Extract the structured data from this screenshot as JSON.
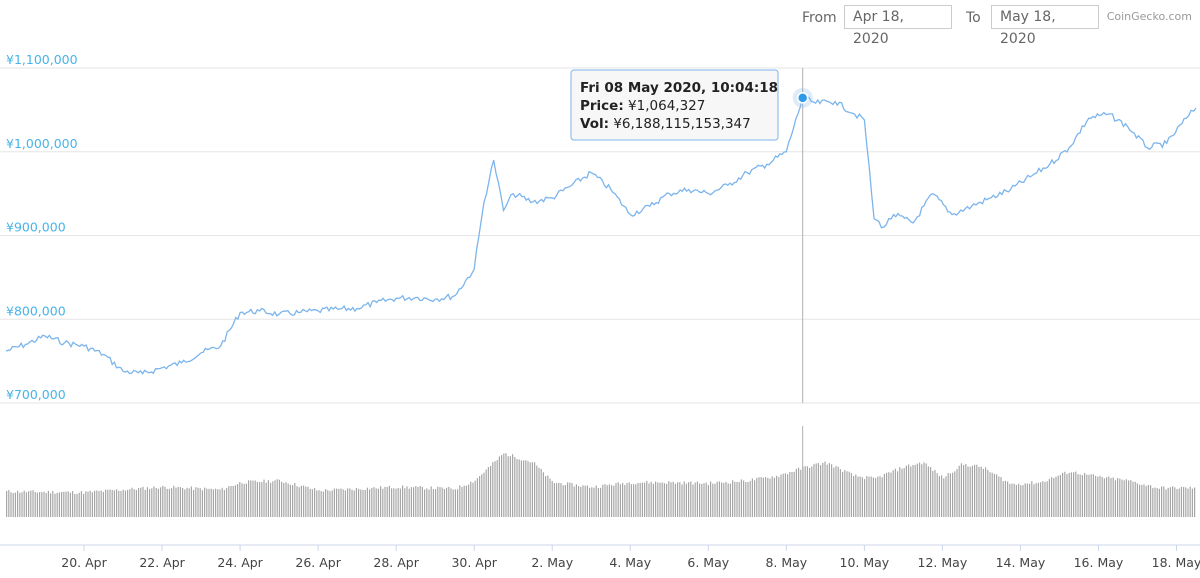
{
  "range_selector": {
    "from_label": "From",
    "from_value": "Apr 18, 2020",
    "to_label": "To",
    "to_value": "May 18, 2020"
  },
  "credit": "CoinGecko.com",
  "tooltip": {
    "title": "Fri 08 May 2020, 10:04:18",
    "price_label": "Price:",
    "price_value": "¥1,064,327",
    "vol_label": "Vol:",
    "vol_value": "¥6,188,115,153,347"
  },
  "colors": {
    "price_line": "#7cb5ec",
    "volume_bars": "#a6a6a6",
    "grid": "#e6e6e6",
    "marker": "#2f9be8"
  },
  "chart_data": {
    "type": "line",
    "title": "",
    "ylabel": "",
    "xlabel": "",
    "ylim": [
      700000,
      1100000
    ],
    "y_ticks": [
      700000,
      800000,
      900000,
      1000000,
      1100000
    ],
    "y_tick_labels": [
      "¥700,000",
      "¥800,000",
      "¥900,000",
      "¥1,000,000",
      "¥1,100,000"
    ],
    "x_range": [
      "2020-04-18 00:00",
      "2020-05-18 12:00"
    ],
    "x_tick_labels": [
      "20. Apr",
      "22. Apr",
      "24. Apr",
      "26. Apr",
      "28. Apr",
      "30. Apr",
      "2. May",
      "4. May",
      "6. May",
      "8. May",
      "10. May",
      "12. May",
      "14. May",
      "16. May",
      "18. May"
    ],
    "x_ticks": [
      "2020-04-20",
      "2020-04-22",
      "2020-04-24",
      "2020-04-26",
      "2020-04-28",
      "2020-04-30",
      "2020-05-02",
      "2020-05-04",
      "2020-05-06",
      "2020-05-08",
      "2020-05-10",
      "2020-05-12",
      "2020-05-14",
      "2020-05-16",
      "2020-05-18"
    ],
    "grid": true,
    "series": [
      {
        "name": "Price",
        "x": [
          "2020-04-18 00:00",
          "2020-04-18 12:00",
          "2020-04-19 00:00",
          "2020-04-19 12:00",
          "2020-04-20 00:00",
          "2020-04-20 12:00",
          "2020-04-21 00:00",
          "2020-04-21 12:00",
          "2020-04-22 00:00",
          "2020-04-22 12:00",
          "2020-04-23 00:00",
          "2020-04-23 12:00",
          "2020-04-24 00:00",
          "2020-04-24 12:00",
          "2020-04-25 00:00",
          "2020-04-25 12:00",
          "2020-04-26 00:00",
          "2020-04-26 12:00",
          "2020-04-27 00:00",
          "2020-04-27 12:00",
          "2020-04-28 00:00",
          "2020-04-28 12:00",
          "2020-04-29 00:00",
          "2020-04-29 12:00",
          "2020-04-30 00:00",
          "2020-04-30 06:00",
          "2020-04-30 12:00",
          "2020-04-30 18:00",
          "2020-05-01 00:00",
          "2020-05-01 12:00",
          "2020-05-02 00:00",
          "2020-05-02 12:00",
          "2020-05-03 00:00",
          "2020-05-03 12:00",
          "2020-05-04 00:00",
          "2020-05-04 12:00",
          "2020-05-05 00:00",
          "2020-05-05 12:00",
          "2020-05-06 00:00",
          "2020-05-06 12:00",
          "2020-05-07 00:00",
          "2020-05-07 12:00",
          "2020-05-08 00:00",
          "2020-05-08 10:04",
          "2020-05-08 18:00",
          "2020-05-09 06:00",
          "2020-05-09 18:00",
          "2020-05-10 00:00",
          "2020-05-10 06:00",
          "2020-05-10 12:00",
          "2020-05-10 18:00",
          "2020-05-11 06:00",
          "2020-05-11 18:00",
          "2020-05-12 06:00",
          "2020-05-12 18:00",
          "2020-05-13 06:00",
          "2020-05-13 18:00",
          "2020-05-14 06:00",
          "2020-05-14 18:00",
          "2020-05-15 06:00",
          "2020-05-15 18:00",
          "2020-05-16 06:00",
          "2020-05-16 18:00",
          "2020-05-17 06:00",
          "2020-05-17 18:00",
          "2020-05-18 06:00",
          "2020-05-18 12:00"
        ],
        "values": [
          762000,
          770000,
          780000,
          772000,
          768000,
          758000,
          738000,
          735000,
          742000,
          748000,
          760000,
          768000,
          808000,
          810000,
          806000,
          808000,
          810000,
          812000,
          813000,
          820000,
          825000,
          826000,
          824000,
          828000,
          860000,
          940000,
          990000,
          930000,
          950000,
          940000,
          945000,
          960000,
          975000,
          955000,
          925000,
          935000,
          950000,
          955000,
          950000,
          960000,
          975000,
          985000,
          1000000,
          1064327,
          1058000,
          1060000,
          1045000,
          1038000,
          920000,
          910000,
          925000,
          915000,
          950000,
          925000,
          935000,
          945000,
          955000,
          970000,
          985000,
          1005000,
          1040000,
          1045000,
          1030000,
          1005000,
          1010000,
          1040000,
          1052000
        ]
      },
      {
        "name": "Vol",
        "x": [
          "2020-04-18 00:00",
          "2020-04-20 00:00",
          "2020-04-22 00:00",
          "2020-04-23 12:00",
          "2020-04-24 00:00",
          "2020-04-25 00:00",
          "2020-04-26 00:00",
          "2020-04-28 00:00",
          "2020-04-29 12:00",
          "2020-04-30 00:00",
          "2020-04-30 18:00",
          "2020-05-01 12:00",
          "2020-05-02 00:00",
          "2020-05-03 00:00",
          "2020-05-04 00:00",
          "2020-05-05 00:00",
          "2020-05-06 00:00",
          "2020-05-07 00:00",
          "2020-05-07 18:00",
          "2020-05-08 12:00",
          "2020-05-09 00:00",
          "2020-05-09 18:00",
          "2020-05-10 06:00",
          "2020-05-11 00:00",
          "2020-05-11 12:00",
          "2020-05-12 00:00",
          "2020-05-12 12:00",
          "2020-05-13 00:00",
          "2020-05-13 18:00",
          "2020-05-14 12:00",
          "2020-05-15 06:00",
          "2020-05-16 00:00",
          "2020-05-16 18:00",
          "2020-05-17 12:00",
          "2020-05-18 12:00"
        ],
        "values": [
          0.28,
          0.27,
          0.33,
          0.3,
          0.38,
          0.4,
          0.29,
          0.33,
          0.31,
          0.4,
          0.7,
          0.6,
          0.38,
          0.33,
          0.38,
          0.38,
          0.37,
          0.4,
          0.45,
          0.55,
          0.6,
          0.45,
          0.42,
          0.55,
          0.6,
          0.43,
          0.58,
          0.55,
          0.36,
          0.38,
          0.5,
          0.44,
          0.4,
          0.32,
          0.32
        ]
      }
    ],
    "highlight": {
      "x": "2020-05-08 10:04",
      "y": 1064327
    }
  }
}
